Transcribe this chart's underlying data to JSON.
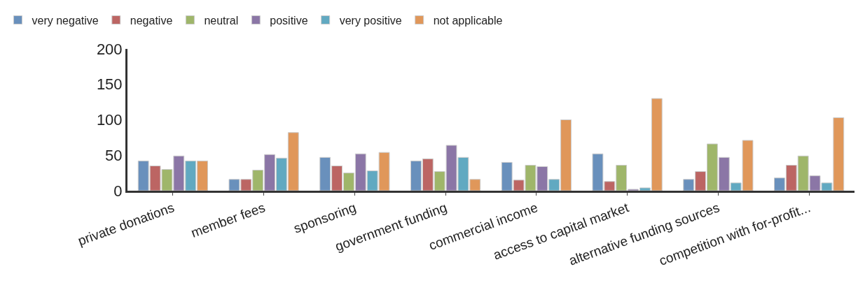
{
  "chart_data": {
    "type": "bar",
    "categories": [
      "private donations",
      "member fees",
      "sponsoring",
      "government funding",
      "commercial income",
      "access to capital market",
      "alternative funding sources",
      "competition with for-profit..."
    ],
    "series": [
      {
        "name": "very negative",
        "color": "#6990bc",
        "values": [
          42,
          16,
          47,
          42,
          40,
          52,
          16,
          18
        ]
      },
      {
        "name": "negative",
        "color": "#bc6563",
        "values": [
          35,
          16,
          35,
          45,
          15,
          13,
          27,
          36
        ]
      },
      {
        "name": "neutral",
        "color": "#9fb66a",
        "values": [
          30,
          29,
          25,
          27,
          36,
          36,
          66,
          49
        ]
      },
      {
        "name": "positive",
        "color": "#8b76a6",
        "values": [
          49,
          51,
          52,
          64,
          34,
          2,
          47,
          21
        ]
      },
      {
        "name": "very positive",
        "color": "#61a9c1",
        "values": [
          42,
          46,
          28,
          47,
          16,
          4,
          11,
          11
        ]
      },
      {
        "name": "not applicable",
        "color": "#e0975a",
        "values": [
          42,
          82,
          54,
          16,
          100,
          130,
          71,
          103
        ]
      }
    ],
    "ylim": [
      0,
      200
    ],
    "yticks": [
      0,
      50,
      100,
      150,
      200
    ],
    "legend": "top left"
  }
}
